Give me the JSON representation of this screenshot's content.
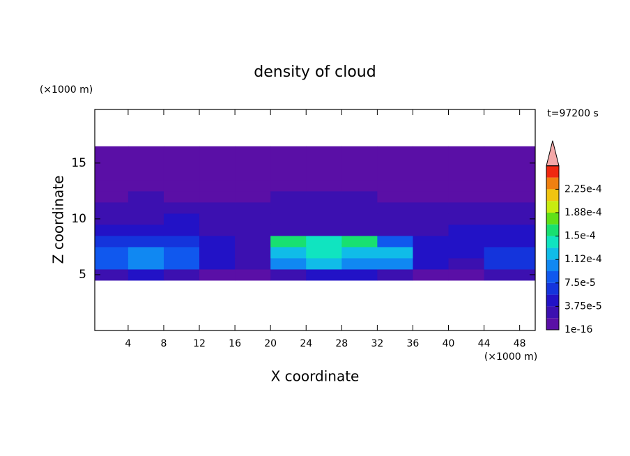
{
  "chart_data": {
    "type": "contour",
    "title": "density of cloud",
    "x_label": "X coordinate",
    "y_label": "Z coordinate",
    "x_unit": "(×1000 m)",
    "y_unit": "(×1000 m)",
    "annotation": "t=97200 s",
    "xlim": [
      0.25,
      49.75
    ],
    "ylim": [
      0,
      19.8
    ],
    "xticks": [
      4,
      8,
      12,
      16,
      20,
      24,
      28,
      32,
      36,
      40,
      44,
      48
    ],
    "yticks": [
      5,
      10,
      15
    ],
    "x": [
      2,
      6,
      10,
      14,
      18,
      22,
      26,
      30,
      34,
      38,
      42,
      46
    ],
    "y": [
      5,
      6,
      7,
      8,
      9,
      10,
      11,
      12,
      13,
      14,
      15,
      16
    ],
    "z": [
      [
        3e-05,
        4e-05,
        3e-05,
        1e-05,
        5e-06,
        3e-05,
        4e-05,
        4e-05,
        3e-05,
        1e-05,
        1e-05,
        2e-05
      ],
      [
        9e-05,
        0.00011,
        9e-05,
        4e-05,
        2e-05,
        0.00011,
        0.00012,
        0.00011,
        0.0001,
        4e-05,
        3e-05,
        6e-05
      ],
      [
        8e-05,
        0.0001,
        8e-05,
        5e-05,
        2e-05,
        0.00013,
        0.00014,
        0.00013,
        0.00012,
        5e-05,
        4e-05,
        7e-05
      ],
      [
        6e-05,
        7e-05,
        6e-05,
        4e-05,
        2e-05,
        0.00015,
        0.00014,
        0.00015,
        8e-05,
        4e-05,
        4e-05,
        5e-05
      ],
      [
        5e-05,
        5e-05,
        5e-05,
        3e-05,
        2e-05,
        2e-05,
        2e-05,
        2e-05,
        2e-05,
        3e-05,
        4e-05,
        5e-05
      ],
      [
        2.5e-05,
        3e-05,
        4e-05,
        2e-05,
        2e-05,
        2e-05,
        2e-05,
        2e-05,
        2e-05,
        2e-05,
        3e-05,
        3e-05
      ],
      [
        2e-05,
        2e-05,
        2e-05,
        2e-05,
        2e-05,
        2e-05,
        2e-05,
        2e-05,
        2e-05,
        2e-05,
        2e-05,
        2e-05
      ],
      [
        1.5e-05,
        2e-05,
        1.5e-05,
        1.5e-05,
        1.5e-05,
        2e-05,
        2e-05,
        2e-05,
        1.5e-05,
        1.5e-05,
        1.5e-05,
        1.5e-05
      ],
      [
        1e-05,
        1e-05,
        1e-05,
        1e-05,
        1e-05,
        1e-05,
        1e-05,
        1e-05,
        1e-05,
        1e-05,
        1e-05,
        1e-05
      ],
      [
        1e-05,
        1e-05,
        1e-05,
        1e-05,
        1e-05,
        1e-05,
        1e-05,
        1e-05,
        1e-05,
        1e-05,
        1e-05,
        1e-05
      ],
      [
        1e-05,
        1e-05,
        1e-05,
        1e-05,
        1e-05,
        1e-05,
        1e-05,
        1e-05,
        1e-05,
        1e-05,
        1e-05,
        1e-05
      ],
      [
        1e-05,
        1e-05,
        1e-05,
        1e-05,
        1e-05,
        1e-05,
        1e-05,
        1e-05,
        1e-05,
        1e-05,
        1e-05,
        1e-05
      ]
    ],
    "colorbar": {
      "levels": [
        {
          "value": 1e-16,
          "label": "1e-16"
        },
        {
          "value": 3.75e-05,
          "label": "3.75e-5"
        },
        {
          "value": 7.5e-05,
          "label": "7.5e-5"
        },
        {
          "value": 0.000112,
          "label": "1.12e-4"
        },
        {
          "value": 0.00015,
          "label": "1.5e-4"
        },
        {
          "value": 0.000188,
          "label": "1.88e-4"
        },
        {
          "value": 0.000225,
          "label": "2.25e-4"
        }
      ],
      "colors": [
        "#5a0fa6",
        "#3c10b0",
        "#2212c6",
        "#1434dc",
        "#1058ee",
        "#1088f2",
        "#10bce8",
        "#10e4c0",
        "#18e070",
        "#60e018",
        "#c8ec10",
        "#f0c410",
        "#f08010",
        "#f02810"
      ],
      "extend_color": "#f4a8a8"
    }
  }
}
